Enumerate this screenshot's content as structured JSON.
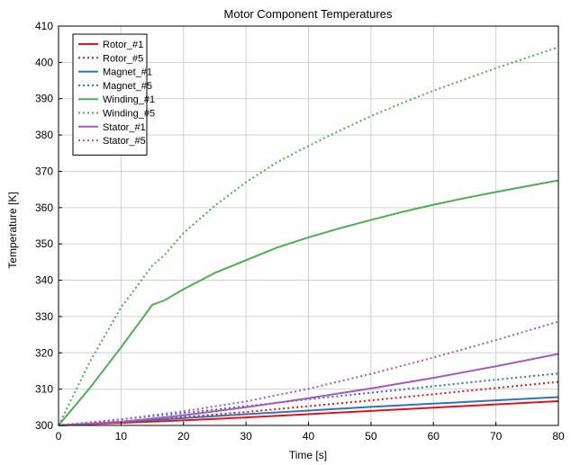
{
  "chart_data": {
    "type": "line",
    "title": "Motor Component Temperatures",
    "xlabel": "Time [s]",
    "ylabel": "Temperature [K]",
    "xlim": [
      0,
      80
    ],
    "ylim": [
      300,
      410
    ],
    "xticks": [
      0,
      10,
      20,
      30,
      40,
      50,
      60,
      70,
      80
    ],
    "yticks": [
      300,
      310,
      320,
      330,
      340,
      350,
      360,
      370,
      380,
      390,
      400,
      410
    ],
    "grid": true,
    "legend_position": "top-left",
    "series": [
      {
        "name": "Rotor_#1",
        "color": "#e8101a",
        "style": "solid",
        "x": [
          0,
          10,
          20,
          30,
          40,
          50,
          60,
          70,
          80
        ],
        "y": [
          300,
          300.7,
          301.4,
          302.2,
          303.1,
          304.0,
          304.9,
          305.8,
          306.7
        ]
      },
      {
        "name": "Rotor_#5",
        "color": "#e8101a",
        "style": "dotted",
        "x": [
          0,
          10,
          20,
          30,
          40,
          50,
          60,
          70,
          80
        ],
        "y": [
          300,
          301.1,
          302.3,
          303.7,
          305.3,
          306.9,
          308.6,
          310.3,
          312.0
        ]
      },
      {
        "name": "Magnet_#1",
        "color": "#2e75b6",
        "style": "solid",
        "x": [
          0,
          10,
          20,
          30,
          40,
          50,
          60,
          70,
          80
        ],
        "y": [
          300,
          301.0,
          302.0,
          303.1,
          304.1,
          305.1,
          306.0,
          306.9,
          307.8
        ]
      },
      {
        "name": "Magnet_#5",
        "color": "#2e75b6",
        "style": "dotted",
        "x": [
          0,
          10,
          20,
          30,
          40,
          50,
          60,
          70,
          80
        ],
        "y": [
          300,
          301.7,
          303.4,
          305.3,
          307.2,
          309.0,
          310.8,
          312.6,
          314.3
        ]
      },
      {
        "name": "Winding_#1",
        "color": "#4caf50",
        "style": "solid",
        "x": [
          0,
          5,
          10,
          13,
          15,
          17,
          20,
          25,
          30,
          35,
          40,
          45,
          50,
          55,
          60,
          65,
          70,
          75,
          80
        ],
        "y": [
          300,
          310.3,
          321.5,
          328.5,
          333.2,
          334.5,
          337.5,
          342.0,
          345.5,
          349.0,
          351.8,
          354.3,
          356.6,
          358.8,
          360.8,
          362.6,
          364.3,
          365.9,
          367.5
        ]
      },
      {
        "name": "Winding_#5",
        "color": "#4caf50",
        "style": "dotted",
        "x": [
          0,
          5,
          10,
          15,
          17,
          20,
          25,
          30,
          35,
          40,
          45,
          50,
          55,
          60,
          65,
          70,
          75,
          80
        ],
        "y": [
          300,
          317.5,
          332.5,
          344.0,
          347.0,
          353.0,
          360.5,
          367.0,
          372.5,
          377.0,
          381.2,
          385.2,
          388.8,
          392.2,
          395.3,
          398.4,
          401.3,
          404.2
        ]
      },
      {
        "name": "Stator_#1",
        "color": "#a05cc0",
        "style": "solid",
        "x": [
          0,
          10,
          20,
          30,
          40,
          50,
          60,
          70,
          80
        ],
        "y": [
          300,
          301.0,
          302.8,
          305.0,
          307.5,
          310.2,
          313.1,
          316.3,
          319.7
        ]
      },
      {
        "name": "Stator_#5",
        "color": "#a05cc0",
        "style": "dotted",
        "x": [
          0,
          10,
          20,
          30,
          40,
          50,
          60,
          70,
          80
        ],
        "y": [
          300,
          301.7,
          303.9,
          306.6,
          310.1,
          314.2,
          318.7,
          323.5,
          328.6
        ]
      }
    ]
  }
}
